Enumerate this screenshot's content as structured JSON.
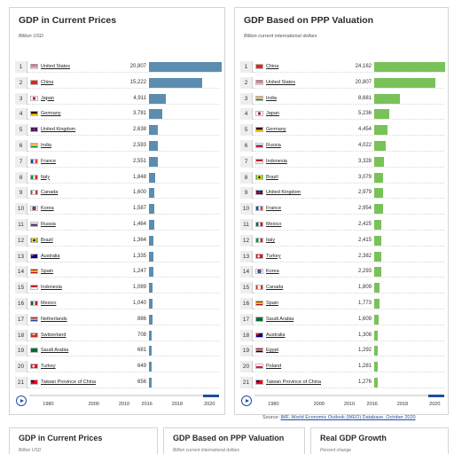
{
  "panels": [
    {
      "title": "GDP in Current Prices",
      "subtitle": "Billion USD",
      "bar_color": "#5b8db0",
      "max": 21000,
      "rows": [
        {
          "rank": "1",
          "country": "United States",
          "value_label": "20,807",
          "value": 20807,
          "flag": "us-flag"
        },
        {
          "rank": "2",
          "country": "China",
          "value_label": "15,222",
          "value": 15222,
          "flag": "cn-flag"
        },
        {
          "rank": "3",
          "country": "Japan",
          "value_label": "4,911",
          "value": 4911,
          "flag": "jp-flag"
        },
        {
          "rank": "4",
          "country": "Germany",
          "value_label": "3,781",
          "value": 3781,
          "flag": "de-flag"
        },
        {
          "rank": "5",
          "country": "United Kingdom",
          "value_label": "2,638",
          "value": 2638,
          "flag": "gb-flag"
        },
        {
          "rank": "6",
          "country": "India",
          "value_label": "2,593",
          "value": 2593,
          "flag": "in-flag"
        },
        {
          "rank": "7",
          "country": "France",
          "value_label": "2,551",
          "value": 2551,
          "flag": "fr-flag"
        },
        {
          "rank": "8",
          "country": "Italy",
          "value_label": "1,848",
          "value": 1848,
          "flag": "it-flag"
        },
        {
          "rank": "9",
          "country": "Canada",
          "value_label": "1,600",
          "value": 1600,
          "flag": "ca-flag"
        },
        {
          "rank": "10",
          "country": "Korea",
          "value_label": "1,587",
          "value": 1587,
          "flag": "kr-flag"
        },
        {
          "rank": "11",
          "country": "Russia",
          "value_label": "1,464",
          "value": 1464,
          "flag": "ru-flag"
        },
        {
          "rank": "12",
          "country": "Brazil",
          "value_label": "1,364",
          "value": 1364,
          "flag": "br-flag"
        },
        {
          "rank": "13",
          "country": "Australia",
          "value_label": "1,335",
          "value": 1335,
          "flag": "au-flag"
        },
        {
          "rank": "14",
          "country": "Spain",
          "value_label": "1,247",
          "value": 1247,
          "flag": "es-flag"
        },
        {
          "rank": "15",
          "country": "Indonesia",
          "value_label": "1,089",
          "value": 1089,
          "flag": "id-flag"
        },
        {
          "rank": "16",
          "country": "Mexico",
          "value_label": "1,040",
          "value": 1040,
          "flag": "mx-flag"
        },
        {
          "rank": "17",
          "country": "Netherlands",
          "value_label": "886",
          "value": 886,
          "flag": "nl-flag"
        },
        {
          "rank": "18",
          "country": "Switzerland",
          "value_label": "708",
          "value": 708,
          "flag": "ch-flag"
        },
        {
          "rank": "19",
          "country": "Saudi Arabia",
          "value_label": "681",
          "value": 681,
          "flag": "sa-flag"
        },
        {
          "rank": "20",
          "country": "Turkey",
          "value_label": "649",
          "value": 649,
          "flag": "tr-flag"
        },
        {
          "rank": "21",
          "country": "Taiwan Province of China",
          "value_label": "656",
          "value": 656,
          "flag": "tw-flag"
        }
      ],
      "timeline": {
        "ticks": [
          "1980",
          "2000",
          "2010",
          "2016",
          "2018",
          "2020"
        ]
      }
    },
    {
      "title": "GDP Based on PPP Valuation",
      "subtitle": "Billion current international dollars",
      "bar_color": "#79c259",
      "max": 25000,
      "rows": [
        {
          "rank": "1",
          "country": "China",
          "value_label": "24,162",
          "value": 24162,
          "flag": "cn-flag"
        },
        {
          "rank": "2",
          "country": "United States",
          "value_label": "20,807",
          "value": 20807,
          "flag": "us-flag"
        },
        {
          "rank": "3",
          "country": "India",
          "value_label": "8,681",
          "value": 8681,
          "flag": "in-flag"
        },
        {
          "rank": "4",
          "country": "Japan",
          "value_label": "5,236",
          "value": 5236,
          "flag": "jp-flag"
        },
        {
          "rank": "5",
          "country": "Germany",
          "value_label": "4,454",
          "value": 4454,
          "flag": "de-flag"
        },
        {
          "rank": "6",
          "country": "Russia",
          "value_label": "4,022",
          "value": 4022,
          "flag": "ru-flag"
        },
        {
          "rank": "7",
          "country": "Indonesia",
          "value_label": "3,328",
          "value": 3328,
          "flag": "id-flag"
        },
        {
          "rank": "8",
          "country": "Brazil",
          "value_label": "3,079",
          "value": 3079,
          "flag": "br-flag"
        },
        {
          "rank": "9",
          "country": "United Kingdom",
          "value_label": "2,979",
          "value": 2979,
          "flag": "gb-flag"
        },
        {
          "rank": "10",
          "country": "France",
          "value_label": "2,954",
          "value": 2954,
          "flag": "fr-flag"
        },
        {
          "rank": "11",
          "country": "Mexico",
          "value_label": "2,425",
          "value": 2425,
          "flag": "mx-flag"
        },
        {
          "rank": "12",
          "country": "Italy",
          "value_label": "2,415",
          "value": 2415,
          "flag": "it-flag"
        },
        {
          "rank": "13",
          "country": "Turkey",
          "value_label": "2,382",
          "value": 2382,
          "flag": "tr-flag"
        },
        {
          "rank": "14",
          "country": "Korea",
          "value_label": "2,293",
          "value": 2293,
          "flag": "kr-flag"
        },
        {
          "rank": "15",
          "country": "Canada",
          "value_label": "1,809",
          "value": 1809,
          "flag": "ca-flag"
        },
        {
          "rank": "16",
          "country": "Spain",
          "value_label": "1,773",
          "value": 1773,
          "flag": "es-flag"
        },
        {
          "rank": "17",
          "country": "Saudi Arabia",
          "value_label": "1,609",
          "value": 1609,
          "flag": "sa-flag"
        },
        {
          "rank": "18",
          "country": "Australia",
          "value_label": "1,308",
          "value": 1308,
          "flag": "au-flag"
        },
        {
          "rank": "19",
          "country": "Egypt",
          "value_label": "1,292",
          "value": 1292,
          "flag": "eg-flag"
        },
        {
          "rank": "20",
          "country": "Poland",
          "value_label": "1,281",
          "value": 1281,
          "flag": "pl-flag"
        },
        {
          "rank": "21",
          "country": "Taiwan Province of China",
          "value_label": "1,276",
          "value": 1276,
          "flag": "tw-flag"
        }
      ],
      "timeline": {
        "ticks": [
          "1980",
          "2000",
          "2010",
          "2016",
          "2018",
          "2020"
        ]
      }
    }
  ],
  "source": {
    "prefix": "Source: ",
    "link": "IMF, World Economic Outlook (WEO) Database, October 2020"
  },
  "bottom_cards": [
    {
      "title": "GDP in Current Prices",
      "subtitle": "Billion USD"
    },
    {
      "title": "GDP Based on PPP Valuation",
      "subtitle": "Billion current international dollars"
    },
    {
      "title": "Real GDP Growth",
      "subtitle": "Percent change"
    }
  ],
  "chart_data": [
    {
      "type": "bar",
      "title": "GDP in Current Prices",
      "subtitle": "Billion USD",
      "categories": [
        "United States",
        "China",
        "Japan",
        "Germany",
        "United Kingdom",
        "India",
        "France",
        "Italy",
        "Canada",
        "Korea",
        "Russia",
        "Brazil",
        "Australia",
        "Spain",
        "Indonesia",
        "Mexico",
        "Netherlands",
        "Switzerland",
        "Saudi Arabia",
        "Turkey",
        "Taiwan Province of China"
      ],
      "values": [
        20807,
        15222,
        4911,
        3781,
        2638,
        2593,
        2551,
        1848,
        1600,
        1587,
        1464,
        1364,
        1335,
        1247,
        1089,
        1040,
        886,
        708,
        681,
        649,
        656
      ],
      "orientation": "horizontal"
    },
    {
      "type": "bar",
      "title": "GDP Based on PPP Valuation",
      "subtitle": "Billion current international dollars",
      "categories": [
        "China",
        "United States",
        "India",
        "Japan",
        "Germany",
        "Russia",
        "Indonesia",
        "Brazil",
        "United Kingdom",
        "France",
        "Mexico",
        "Italy",
        "Turkey",
        "Korea",
        "Canada",
        "Spain",
        "Saudi Arabia",
        "Australia",
        "Egypt",
        "Poland",
        "Taiwan Province of China"
      ],
      "values": [
        24162,
        20807,
        8681,
        5236,
        4454,
        4022,
        3328,
        3079,
        2979,
        2954,
        2425,
        2415,
        2382,
        2293,
        1809,
        1773,
        1609,
        1308,
        1292,
        1281,
        1276
      ],
      "orientation": "horizontal"
    }
  ],
  "colors": {
    "accent": "#1f4e9e",
    "bar_current": "#5b8db0",
    "bar_ppp": "#79c259"
  }
}
